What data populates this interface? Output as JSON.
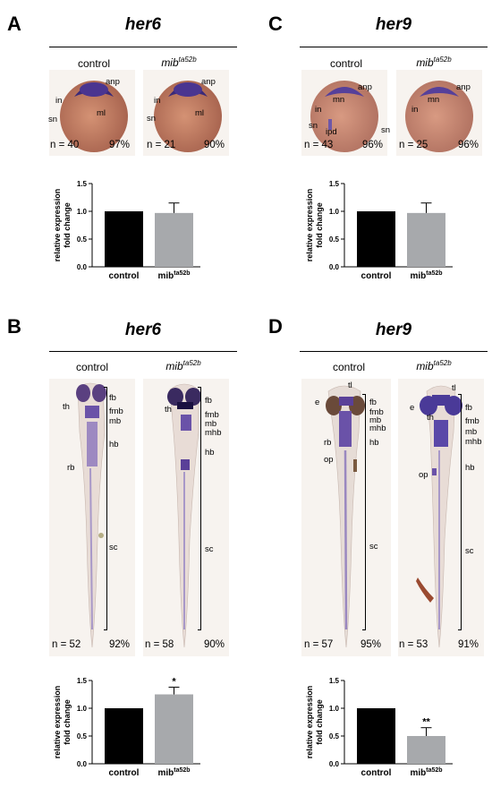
{
  "panels": {
    "A": {
      "letter": "A",
      "gene": "her6",
      "control": "control",
      "mutant": "mib",
      "mutant_sup": "ta52b",
      "control_n": "n = 40",
      "control_pct": "97%",
      "mutant_n": "n = 21",
      "mutant_pct": "90%",
      "labels": {
        "anp": "anp",
        "in": "in",
        "sn": "sn",
        "ml": "ml"
      }
    },
    "B": {
      "letter": "B",
      "gene": "her6",
      "control": "control",
      "mutant": "mib",
      "mutant_sup": "ta52b",
      "control_n": "n = 52",
      "control_pct": "92%",
      "mutant_n": "n = 58",
      "mutant_pct": "90%",
      "labels": {
        "th": "th",
        "rb": "rb",
        "fb": "fb",
        "fmb": "fmb",
        "mb": "mb",
        "mhb": "mhb",
        "hb": "hb",
        "sc": "sc"
      }
    },
    "C": {
      "letter": "C",
      "gene": "her9",
      "control": "control",
      "mutant": "mib",
      "mutant_sup": "ta52b",
      "control_n": "n = 43",
      "control_pct": "96%",
      "mutant_n": "n = 25",
      "mutant_pct": "96%",
      "labels": {
        "anp": "anp",
        "mn": "mn",
        "in": "in",
        "sn": "sn",
        "ipd": "ipd"
      }
    },
    "D": {
      "letter": "D",
      "gene": "her9",
      "control": "control",
      "mutant": "mib",
      "mutant_sup": "ta52b",
      "control_n": "n = 57",
      "control_pct": "95%",
      "mutant_n": "n = 53",
      "mutant_pct": "91%",
      "labels": {
        "tl": "tl",
        "e": "e",
        "th": "th",
        "rb": "rb",
        "op": "op",
        "fb": "fb",
        "fmb": "fmb",
        "mb": "mb",
        "mhb": "mhb",
        "hb": "hb",
        "sc": "sc"
      }
    }
  },
  "chart_data": [
    {
      "panel": "A",
      "type": "bar",
      "categories": [
        "control",
        "mib"
      ],
      "category_sup": [
        "",
        "ta52b"
      ],
      "values": [
        1.0,
        0.97
      ],
      "errors": [
        0,
        0.18
      ],
      "significance": [
        "",
        ""
      ],
      "ylabel": "relative expression fold change",
      "ylim": [
        0,
        1.5
      ],
      "yticks": [
        "0.0",
        "0.5",
        "1.0",
        "1.5"
      ],
      "colors": [
        "#000000",
        "#a7a9ac"
      ]
    },
    {
      "panel": "C",
      "type": "bar",
      "categories": [
        "control",
        "mib"
      ],
      "category_sup": [
        "",
        "ta52b"
      ],
      "values": [
        1.0,
        0.97
      ],
      "errors": [
        0,
        0.18
      ],
      "significance": [
        "",
        ""
      ],
      "ylabel": "relative expression fold change",
      "ylim": [
        0,
        1.5
      ],
      "yticks": [
        "0.0",
        "0.5",
        "1.0",
        "1.5"
      ],
      "colors": [
        "#000000",
        "#a7a9ac"
      ]
    },
    {
      "panel": "B",
      "type": "bar",
      "categories": [
        "control",
        "mib"
      ],
      "category_sup": [
        "",
        "ta52b"
      ],
      "values": [
        1.0,
        1.25
      ],
      "errors": [
        0,
        0.13
      ],
      "significance": [
        "",
        "*"
      ],
      "ylabel": "relative expression fold change",
      "ylim": [
        0,
        1.5
      ],
      "yticks": [
        "0.0",
        "0.5",
        "1.0",
        "1.5"
      ],
      "colors": [
        "#000000",
        "#a7a9ac"
      ]
    },
    {
      "panel": "D",
      "type": "bar",
      "categories": [
        "control",
        "mib"
      ],
      "category_sup": [
        "",
        "ta52b"
      ],
      "values": [
        1.0,
        0.5
      ],
      "errors": [
        0,
        0.15
      ],
      "significance": [
        "",
        "**"
      ],
      "ylabel": "relative expression fold change",
      "ylim": [
        0,
        1.5
      ],
      "yticks": [
        "0.0",
        "0.5",
        "1.0",
        "1.5"
      ],
      "colors": [
        "#000000",
        "#a7a9ac"
      ]
    }
  ]
}
